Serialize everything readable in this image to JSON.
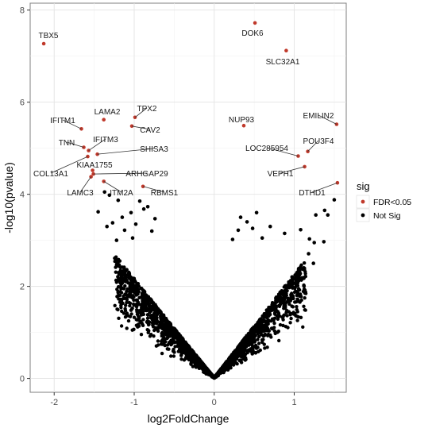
{
  "chart_data": {
    "type": "scatter",
    "xlabel": "log2FoldChange",
    "ylabel": "-log10(pvalue)",
    "xlim": [
      -2.3,
      1.65
    ],
    "ylim": [
      -0.3,
      8.15
    ],
    "x_ticks": [
      -2,
      -1,
      0,
      1
    ],
    "y_ticks": [
      0,
      2,
      4,
      6,
      8
    ],
    "grid": true,
    "legend": {
      "title": "sig",
      "position": "right",
      "entries": [
        {
          "label": "FDR<0.05",
          "color": "#c0392b"
        },
        {
          "label": "Not Sig",
          "color": "#000000"
        }
      ]
    },
    "series": [
      {
        "name": "FDR<0.05",
        "color": "#c0392b",
        "points": [
          {
            "label": "TBX5",
            "x": -2.13,
            "y": 7.27
          },
          {
            "label": "DOK6",
            "x": 0.51,
            "y": 7.72
          },
          {
            "label": "SLC32A1",
            "x": 0.9,
            "y": 7.12
          },
          {
            "label": "LAMA2",
            "x": -1.38,
            "y": 5.62
          },
          {
            "label": "TPX2",
            "x": -0.99,
            "y": 5.67
          },
          {
            "label": "IFITM1",
            "x": -1.66,
            "y": 5.42
          },
          {
            "label": "CAV2",
            "x": -1.03,
            "y": 5.48
          },
          {
            "label": "NUP93",
            "x": 0.37,
            "y": 5.49
          },
          {
            "label": "EMILIN2",
            "x": 1.53,
            "y": 5.52
          },
          {
            "label": "TNN",
            "x": -1.63,
            "y": 5.02
          },
          {
            "label": "IFITM3",
            "x": -1.57,
            "y": 4.95
          },
          {
            "label": "POU3F4",
            "x": 1.17,
            "y": 4.93
          },
          {
            "label": "SHISA3",
            "x": -1.46,
            "y": 4.87
          },
          {
            "label": "LOC285954",
            "x": 1.05,
            "y": 4.83
          },
          {
            "label": "COL13A1",
            "x": -1.58,
            "y": 4.82
          },
          {
            "label": "VEPH1",
            "x": 1.13,
            "y": 4.6
          },
          {
            "label": "KIAA1755",
            "x": -1.52,
            "y": 4.52
          },
          {
            "label": "ARHGAP29",
            "x": -1.51,
            "y": 4.44
          },
          {
            "label": "LAMC3",
            "x": -1.54,
            "y": 4.38
          },
          {
            "label": "ITM2A",
            "x": -1.38,
            "y": 4.28
          },
          {
            "label": "RBMS1",
            "x": -0.89,
            "y": 4.17
          },
          {
            "label": "DTHD1",
            "x": 1.54,
            "y": 4.25
          }
        ]
      },
      {
        "name": "Not Sig",
        "color": "#000000",
        "points": [
          {
            "x": -0.83,
            "y": 3.73
          },
          {
            "x": -0.93,
            "y": 3.85
          },
          {
            "x": -1.31,
            "y": 3.98
          },
          {
            "x": -1.2,
            "y": 3.87
          },
          {
            "x": -1.37,
            "y": 4.05
          },
          {
            "x": -0.88,
            "y": 3.68
          },
          {
            "x": 1.5,
            "y": 3.88
          },
          {
            "x": 1.38,
            "y": 3.65
          },
          {
            "x": 1.42,
            "y": 3.55
          },
          {
            "x": 1.27,
            "y": 3.55
          },
          {
            "x": 1.08,
            "y": 3.23
          },
          {
            "x": 1.19,
            "y": 3.03
          },
          {
            "x": 1.25,
            "y": 2.95
          },
          {
            "x": 1.24,
            "y": 2.5
          },
          {
            "x": 1.37,
            "y": 2.97
          },
          {
            "x": 1.18,
            "y": 2.71
          },
          {
            "x": -1.22,
            "y": 3.0
          },
          {
            "x": -1.12,
            "y": 3.22
          },
          {
            "x": -1.34,
            "y": 3.3
          },
          {
            "x": -1.15,
            "y": 3.5
          },
          {
            "x": -0.98,
            "y": 3.35
          },
          {
            "x": -1.04,
            "y": 3.6
          },
          {
            "x": -1.27,
            "y": 3.38
          },
          {
            "x": -0.78,
            "y": 3.2
          },
          {
            "x": -1.45,
            "y": 3.62
          },
          {
            "x": -1.02,
            "y": 3.05
          },
          {
            "x": 0.33,
            "y": 3.5
          },
          {
            "x": 0.48,
            "y": 3.26
          },
          {
            "x": 0.6,
            "y": 3.05
          },
          {
            "x": 0.3,
            "y": 3.22
          },
          {
            "x": 0.41,
            "y": 3.4
          },
          {
            "x": 0.53,
            "y": 3.6
          },
          {
            "x": -0.74,
            "y": 3.47
          },
          {
            "x": 0.7,
            "y": 3.3
          },
          {
            "x": 0.88,
            "y": 3.15
          },
          {
            "x": 0.23,
            "y": 3.02
          }
        ]
      }
    ]
  }
}
